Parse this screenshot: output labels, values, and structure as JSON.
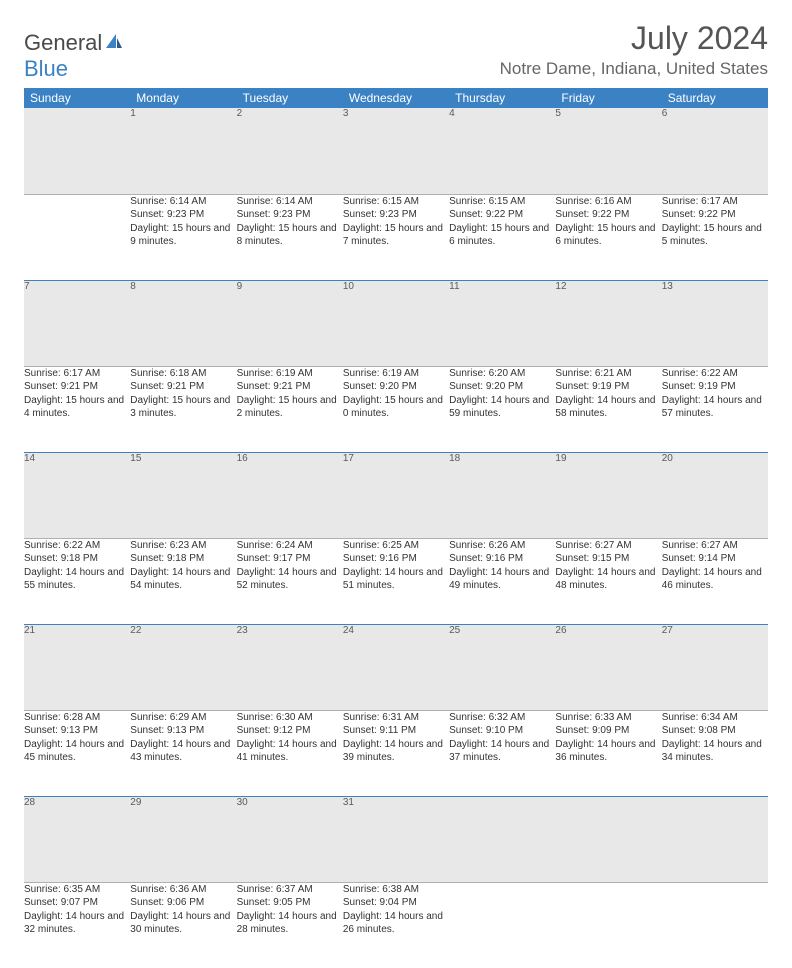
{
  "brand": {
    "text1": "General",
    "text2": "Blue"
  },
  "title": "July 2024",
  "location": "Notre Dame, Indiana, United States",
  "weekdays": [
    "Sunday",
    "Monday",
    "Tuesday",
    "Wednesday",
    "Thursday",
    "Friday",
    "Saturday"
  ],
  "colors": {
    "header_bg": "#3b82c4",
    "daynum_bg": "#e8e8e8",
    "row_border": "#3b82c4"
  },
  "weeks": [
    [
      null,
      {
        "n": "1",
        "sunrise": "Sunrise: 6:14 AM",
        "sunset": "Sunset: 9:23 PM",
        "daylight": "Daylight: 15 hours and 9 minutes."
      },
      {
        "n": "2",
        "sunrise": "Sunrise: 6:14 AM",
        "sunset": "Sunset: 9:23 PM",
        "daylight": "Daylight: 15 hours and 8 minutes."
      },
      {
        "n": "3",
        "sunrise": "Sunrise: 6:15 AM",
        "sunset": "Sunset: 9:23 PM",
        "daylight": "Daylight: 15 hours and 7 minutes."
      },
      {
        "n": "4",
        "sunrise": "Sunrise: 6:15 AM",
        "sunset": "Sunset: 9:22 PM",
        "daylight": "Daylight: 15 hours and 6 minutes."
      },
      {
        "n": "5",
        "sunrise": "Sunrise: 6:16 AM",
        "sunset": "Sunset: 9:22 PM",
        "daylight": "Daylight: 15 hours and 6 minutes."
      },
      {
        "n": "6",
        "sunrise": "Sunrise: 6:17 AM",
        "sunset": "Sunset: 9:22 PM",
        "daylight": "Daylight: 15 hours and 5 minutes."
      }
    ],
    [
      {
        "n": "7",
        "sunrise": "Sunrise: 6:17 AM",
        "sunset": "Sunset: 9:21 PM",
        "daylight": "Daylight: 15 hours and 4 minutes."
      },
      {
        "n": "8",
        "sunrise": "Sunrise: 6:18 AM",
        "sunset": "Sunset: 9:21 PM",
        "daylight": "Daylight: 15 hours and 3 minutes."
      },
      {
        "n": "9",
        "sunrise": "Sunrise: 6:19 AM",
        "sunset": "Sunset: 9:21 PM",
        "daylight": "Daylight: 15 hours and 2 minutes."
      },
      {
        "n": "10",
        "sunrise": "Sunrise: 6:19 AM",
        "sunset": "Sunset: 9:20 PM",
        "daylight": "Daylight: 15 hours and 0 minutes."
      },
      {
        "n": "11",
        "sunrise": "Sunrise: 6:20 AM",
        "sunset": "Sunset: 9:20 PM",
        "daylight": "Daylight: 14 hours and 59 minutes."
      },
      {
        "n": "12",
        "sunrise": "Sunrise: 6:21 AM",
        "sunset": "Sunset: 9:19 PM",
        "daylight": "Daylight: 14 hours and 58 minutes."
      },
      {
        "n": "13",
        "sunrise": "Sunrise: 6:22 AM",
        "sunset": "Sunset: 9:19 PM",
        "daylight": "Daylight: 14 hours and 57 minutes."
      }
    ],
    [
      {
        "n": "14",
        "sunrise": "Sunrise: 6:22 AM",
        "sunset": "Sunset: 9:18 PM",
        "daylight": "Daylight: 14 hours and 55 minutes."
      },
      {
        "n": "15",
        "sunrise": "Sunrise: 6:23 AM",
        "sunset": "Sunset: 9:18 PM",
        "daylight": "Daylight: 14 hours and 54 minutes."
      },
      {
        "n": "16",
        "sunrise": "Sunrise: 6:24 AM",
        "sunset": "Sunset: 9:17 PM",
        "daylight": "Daylight: 14 hours and 52 minutes."
      },
      {
        "n": "17",
        "sunrise": "Sunrise: 6:25 AM",
        "sunset": "Sunset: 9:16 PM",
        "daylight": "Daylight: 14 hours and 51 minutes."
      },
      {
        "n": "18",
        "sunrise": "Sunrise: 6:26 AM",
        "sunset": "Sunset: 9:16 PM",
        "daylight": "Daylight: 14 hours and 49 minutes."
      },
      {
        "n": "19",
        "sunrise": "Sunrise: 6:27 AM",
        "sunset": "Sunset: 9:15 PM",
        "daylight": "Daylight: 14 hours and 48 minutes."
      },
      {
        "n": "20",
        "sunrise": "Sunrise: 6:27 AM",
        "sunset": "Sunset: 9:14 PM",
        "daylight": "Daylight: 14 hours and 46 minutes."
      }
    ],
    [
      {
        "n": "21",
        "sunrise": "Sunrise: 6:28 AM",
        "sunset": "Sunset: 9:13 PM",
        "daylight": "Daylight: 14 hours and 45 minutes."
      },
      {
        "n": "22",
        "sunrise": "Sunrise: 6:29 AM",
        "sunset": "Sunset: 9:13 PM",
        "daylight": "Daylight: 14 hours and 43 minutes."
      },
      {
        "n": "23",
        "sunrise": "Sunrise: 6:30 AM",
        "sunset": "Sunset: 9:12 PM",
        "daylight": "Daylight: 14 hours and 41 minutes."
      },
      {
        "n": "24",
        "sunrise": "Sunrise: 6:31 AM",
        "sunset": "Sunset: 9:11 PM",
        "daylight": "Daylight: 14 hours and 39 minutes."
      },
      {
        "n": "25",
        "sunrise": "Sunrise: 6:32 AM",
        "sunset": "Sunset: 9:10 PM",
        "daylight": "Daylight: 14 hours and 37 minutes."
      },
      {
        "n": "26",
        "sunrise": "Sunrise: 6:33 AM",
        "sunset": "Sunset: 9:09 PM",
        "daylight": "Daylight: 14 hours and 36 minutes."
      },
      {
        "n": "27",
        "sunrise": "Sunrise: 6:34 AM",
        "sunset": "Sunset: 9:08 PM",
        "daylight": "Daylight: 14 hours and 34 minutes."
      }
    ],
    [
      {
        "n": "28",
        "sunrise": "Sunrise: 6:35 AM",
        "sunset": "Sunset: 9:07 PM",
        "daylight": "Daylight: 14 hours and 32 minutes."
      },
      {
        "n": "29",
        "sunrise": "Sunrise: 6:36 AM",
        "sunset": "Sunset: 9:06 PM",
        "daylight": "Daylight: 14 hours and 30 minutes."
      },
      {
        "n": "30",
        "sunrise": "Sunrise: 6:37 AM",
        "sunset": "Sunset: 9:05 PM",
        "daylight": "Daylight: 14 hours and 28 minutes."
      },
      {
        "n": "31",
        "sunrise": "Sunrise: 6:38 AM",
        "sunset": "Sunset: 9:04 PM",
        "daylight": "Daylight: 14 hours and 26 minutes."
      },
      null,
      null,
      null
    ]
  ]
}
